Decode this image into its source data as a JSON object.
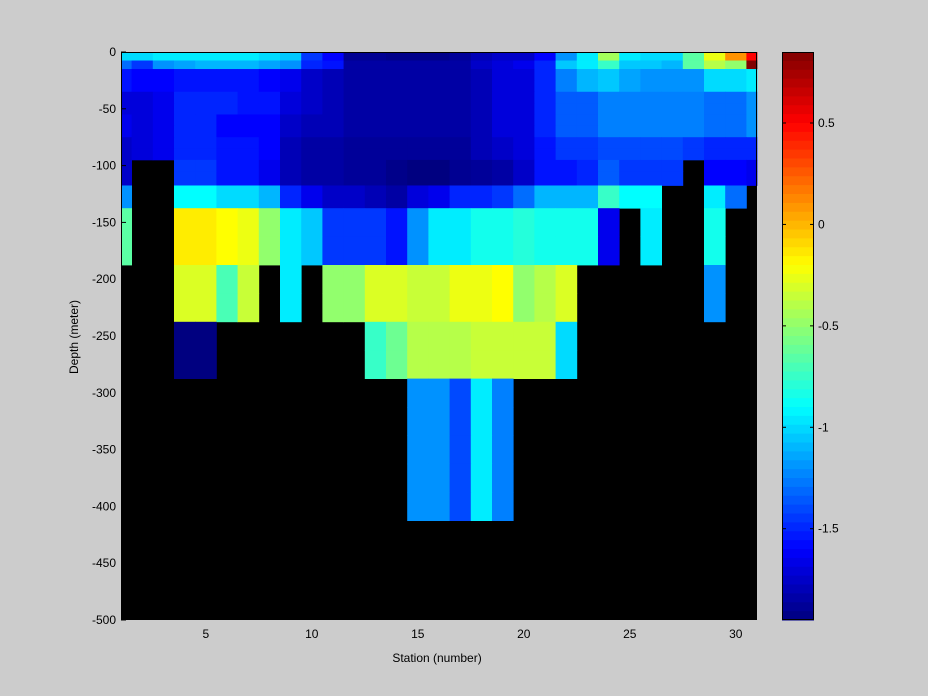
{
  "chart_data": {
    "type": "heatmap",
    "title": "",
    "xlabel": "Station (number)",
    "ylabel": "Depth (meter)",
    "xlim": [
      1,
      31
    ],
    "ylim": [
      -500,
      0
    ],
    "x_ticks": [
      5,
      10,
      15,
      20,
      25,
      30
    ],
    "y_ticks": [
      0,
      -50,
      -100,
      -150,
      -200,
      -250,
      -300,
      -350,
      -400,
      -450,
      -500
    ],
    "colorbar": {
      "range": [
        -1.95,
        0.85
      ],
      "ticks": [
        0.5,
        0,
        -0.5,
        -1,
        -1.5
      ],
      "tick_labels": [
        "0.5",
        "0",
        "-0.5",
        "-1",
        "-1.5"
      ],
      "colormap": "jet"
    },
    "no_data_color": "#000000",
    "stations": [
      1,
      2,
      3,
      4,
      5,
      6,
      7,
      8,
      9,
      10,
      11,
      12,
      13,
      14,
      15,
      16,
      17,
      18,
      19,
      20,
      21,
      22,
      23,
      24,
      25,
      26,
      27,
      28,
      29,
      30,
      31
    ],
    "depths": [
      -5,
      -10,
      -20,
      -30,
      -40,
      -50,
      -60,
      -70,
      -80,
      -90,
      -100,
      -110,
      -125,
      -150,
      -175,
      -200,
      -225,
      -250,
      -275,
      -300,
      -325,
      -350,
      -375,
      -400
    ],
    "values": [
      [
        -1.0,
        -1.0,
        -0.95,
        -0.95,
        -0.95,
        -0.95,
        -0.95,
        -1.0,
        -1.05,
        -1.45,
        -1.6,
        -1.9,
        -1.9,
        -1.92,
        -1.92,
        -1.92,
        -1.88,
        -1.8,
        -1.75,
        -1.75,
        -1.6,
        -1.2,
        -0.95,
        -0.45,
        -0.95,
        -1.0,
        -1.0,
        -0.65,
        -0.25,
        0.1,
        0.5
      ],
      [
        -1.3,
        -1.45,
        -1.2,
        -1.15,
        -1.1,
        -1.1,
        -1.1,
        -1.15,
        -1.2,
        -1.5,
        -1.55,
        -1.85,
        -1.85,
        -1.85,
        -1.85,
        -1.85,
        -1.85,
        -1.75,
        -1.7,
        -1.65,
        -1.5,
        -1.05,
        -0.95,
        -0.75,
        -1.05,
        -1.05,
        -1.1,
        -0.65,
        -0.4,
        -0.5,
        0.85
      ],
      [
        -1.55,
        -1.6,
        -1.6,
        -1.55,
        -1.55,
        -1.55,
        -1.55,
        -1.6,
        -1.65,
        -1.75,
        -1.8,
        -1.85,
        -1.85,
        -1.85,
        -1.85,
        -1.85,
        -1.85,
        -1.8,
        -1.7,
        -1.7,
        -1.5,
        -1.25,
        -1.1,
        -1.05,
        -1.15,
        -1.2,
        -1.2,
        -1.2,
        -1.0,
        -1.0,
        -0.95
      ],
      [
        -1.55,
        -1.6,
        -1.6,
        -1.55,
        -1.55,
        -1.55,
        -1.55,
        -1.6,
        -1.65,
        -1.75,
        -1.8,
        -1.85,
        -1.85,
        -1.85,
        -1.85,
        -1.85,
        -1.85,
        -1.8,
        -1.7,
        -1.7,
        -1.5,
        -1.25,
        -1.1,
        -1.05,
        -1.15,
        -1.2,
        -1.2,
        -1.2,
        -1.0,
        -1.0,
        -0.95
      ],
      [
        -1.7,
        -1.7,
        -1.65,
        -1.5,
        -1.5,
        -1.5,
        -1.55,
        -1.55,
        -1.7,
        -1.75,
        -1.8,
        -1.85,
        -1.85,
        -1.85,
        -1.85,
        -1.85,
        -1.85,
        -1.8,
        -1.7,
        -1.7,
        -1.5,
        -1.35,
        -1.35,
        -1.25,
        -1.25,
        -1.25,
        -1.25,
        -1.25,
        -1.3,
        -1.3,
        -1.2
      ],
      [
        -1.7,
        -1.7,
        -1.65,
        -1.5,
        -1.5,
        -1.5,
        -1.55,
        -1.55,
        -1.7,
        -1.75,
        -1.8,
        -1.85,
        -1.85,
        -1.85,
        -1.85,
        -1.85,
        -1.85,
        -1.8,
        -1.7,
        -1.7,
        -1.5,
        -1.35,
        -1.35,
        -1.25,
        -1.25,
        -1.25,
        -1.25,
        -1.25,
        -1.3,
        -1.3,
        -1.2
      ],
      [
        -1.65,
        -1.7,
        -1.65,
        -1.5,
        -1.5,
        -1.6,
        -1.6,
        -1.6,
        -1.75,
        -1.8,
        -1.8,
        -1.85,
        -1.85,
        -1.85,
        -1.85,
        -1.85,
        -1.85,
        -1.8,
        -1.7,
        -1.7,
        -1.5,
        -1.35,
        -1.35,
        -1.25,
        -1.25,
        -1.25,
        -1.25,
        -1.25,
        -1.3,
        -1.3,
        -1.2
      ],
      [
        -1.65,
        -1.7,
        -1.65,
        -1.5,
        -1.5,
        -1.6,
        -1.6,
        -1.6,
        -1.75,
        -1.8,
        -1.8,
        -1.85,
        -1.85,
        -1.85,
        -1.85,
        -1.85,
        -1.85,
        -1.8,
        -1.7,
        -1.7,
        -1.5,
        -1.35,
        -1.35,
        -1.25,
        -1.25,
        -1.25,
        -1.25,
        -1.25,
        -1.3,
        -1.3,
        -1.2
      ],
      [
        -1.75,
        -1.7,
        -1.65,
        -1.5,
        -1.5,
        -1.55,
        -1.55,
        -1.6,
        -1.8,
        -1.85,
        -1.85,
        -1.88,
        -1.88,
        -1.88,
        -1.88,
        -1.88,
        -1.88,
        -1.8,
        -1.75,
        -1.7,
        -1.55,
        -1.45,
        -1.45,
        -1.4,
        -1.4,
        -1.4,
        -1.4,
        -1.45,
        -1.5,
        -1.5,
        -1.5
      ],
      [
        -1.75,
        -1.7,
        -1.65,
        -1.5,
        -1.5,
        -1.55,
        -1.55,
        -1.6,
        -1.8,
        -1.85,
        -1.85,
        -1.88,
        -1.88,
        -1.88,
        -1.88,
        -1.88,
        -1.88,
        -1.8,
        -1.75,
        -1.7,
        -1.55,
        -1.45,
        -1.45,
        -1.4,
        -1.4,
        -1.4,
        -1.4,
        -1.45,
        -1.5,
        -1.5,
        -1.5
      ],
      [
        -1.75,
        null,
        null,
        -1.45,
        -1.45,
        -1.55,
        -1.55,
        -1.65,
        -1.8,
        -1.85,
        -1.85,
        -1.88,
        -1.88,
        -1.92,
        -1.95,
        -1.95,
        -1.9,
        -1.88,
        -1.85,
        -1.75,
        -1.55,
        -1.55,
        -1.5,
        -1.35,
        -1.45,
        -1.45,
        -1.45,
        null,
        -1.6,
        -1.6,
        -1.65
      ],
      [
        -1.75,
        null,
        null,
        -1.45,
        -1.45,
        -1.55,
        -1.55,
        -1.65,
        -1.8,
        -1.85,
        -1.85,
        -1.88,
        -1.88,
        -1.92,
        -1.95,
        -1.95,
        -1.9,
        -1.88,
        -1.85,
        -1.75,
        -1.55,
        -1.55,
        -1.5,
        -1.35,
        -1.45,
        -1.45,
        -1.45,
        null,
        -1.6,
        -1.6,
        -1.65
      ],
      [
        -1.2,
        null,
        null,
        -0.9,
        -0.9,
        -1.0,
        -1.0,
        -1.1,
        -1.5,
        -1.65,
        -1.75,
        -1.75,
        -1.8,
        -1.85,
        -1.7,
        -1.65,
        -1.5,
        -1.5,
        -1.45,
        -1.3,
        -1.1,
        -1.1,
        -1.1,
        -0.75,
        -0.9,
        -0.9,
        null,
        null,
        -0.95,
        -1.3,
        null
      ],
      [
        -0.65,
        null,
        null,
        -0.15,
        -0.15,
        -0.2,
        -0.25,
        -0.5,
        -0.95,
        -1.05,
        -1.45,
        -1.45,
        -1.45,
        -1.55,
        -1.2,
        -0.95,
        -0.95,
        -0.85,
        -0.85,
        -0.8,
        -0.85,
        -0.85,
        -0.85,
        -1.65,
        null,
        -0.95,
        null,
        null,
        -0.85,
        null,
        null
      ],
      [
        -0.65,
        null,
        null,
        -0.15,
        -0.15,
        -0.2,
        -0.25,
        -0.5,
        -0.95,
        -1.05,
        -1.45,
        -1.45,
        -1.45,
        -1.55,
        -1.2,
        -0.95,
        -0.95,
        -0.85,
        -0.85,
        -0.8,
        -0.85,
        -0.85,
        -0.85,
        -1.65,
        null,
        -0.95,
        null,
        null,
        -0.85,
        null,
        null
      ],
      [
        null,
        null,
        null,
        -0.3,
        -0.3,
        -0.7,
        -0.35,
        null,
        -0.95,
        null,
        -0.5,
        -0.5,
        -0.3,
        -0.3,
        -0.35,
        -0.35,
        -0.25,
        -0.25,
        -0.2,
        -0.5,
        -0.4,
        -0.3,
        null,
        null,
        null,
        null,
        null,
        null,
        -1.2,
        null,
        null
      ],
      [
        null,
        null,
        null,
        -0.3,
        -0.3,
        -0.7,
        -0.35,
        null,
        -0.95,
        null,
        -0.5,
        -0.5,
        -0.3,
        -0.3,
        -0.35,
        -0.35,
        -0.25,
        -0.25,
        -0.2,
        -0.5,
        -0.4,
        -0.3,
        null,
        null,
        null,
        null,
        null,
        null,
        -1.2,
        null,
        null
      ],
      [
        null,
        null,
        null,
        -1.95,
        -1.95,
        null,
        null,
        null,
        null,
        null,
        null,
        null,
        -0.75,
        -0.6,
        -0.4,
        -0.4,
        -0.4,
        -0.35,
        -0.35,
        -0.35,
        -0.35,
        -1.0,
        null,
        null,
        null,
        null,
        null,
        null,
        null,
        null,
        null
      ],
      [
        null,
        null,
        null,
        -1.95,
        -1.95,
        null,
        null,
        null,
        null,
        null,
        null,
        null,
        -0.75,
        -0.6,
        -0.4,
        -0.4,
        -0.4,
        -0.35,
        -0.35,
        -0.35,
        -0.35,
        -1.0,
        null,
        null,
        null,
        null,
        null,
        null,
        null,
        null,
        null
      ],
      [
        null,
        null,
        null,
        null,
        null,
        null,
        null,
        null,
        null,
        null,
        null,
        null,
        null,
        null,
        -1.2,
        -1.2,
        -1.4,
        -0.95,
        -1.25,
        null,
        null,
        null,
        null,
        null,
        null,
        null,
        null,
        null,
        null,
        null,
        null
      ],
      [
        null,
        null,
        null,
        null,
        null,
        null,
        null,
        null,
        null,
        null,
        null,
        null,
        null,
        null,
        -1.2,
        -1.2,
        -1.4,
        -0.95,
        -1.25,
        null,
        null,
        null,
        null,
        null,
        null,
        null,
        null,
        null,
        null,
        null,
        null
      ],
      [
        null,
        null,
        null,
        null,
        null,
        null,
        null,
        null,
        null,
        null,
        null,
        null,
        null,
        null,
        -1.2,
        -1.2,
        -1.4,
        -0.95,
        -1.25,
        null,
        null,
        null,
        null,
        null,
        null,
        null,
        null,
        null,
        null,
        null,
        null
      ],
      [
        null,
        null,
        null,
        null,
        null,
        null,
        null,
        null,
        null,
        null,
        null,
        null,
        null,
        null,
        -1.2,
        -1.2,
        -1.4,
        -0.95,
        -1.25,
        null,
        null,
        null,
        null,
        null,
        null,
        null,
        null,
        null,
        null,
        null,
        null
      ],
      [
        null,
        null,
        null,
        null,
        null,
        null,
        null,
        null,
        null,
        null,
        null,
        null,
        null,
        null,
        -1.2,
        -1.2,
        -1.4,
        -0.95,
        -1.25,
        null,
        null,
        null,
        null,
        null,
        null,
        null,
        null,
        null,
        null,
        null,
        null
      ]
    ]
  }
}
